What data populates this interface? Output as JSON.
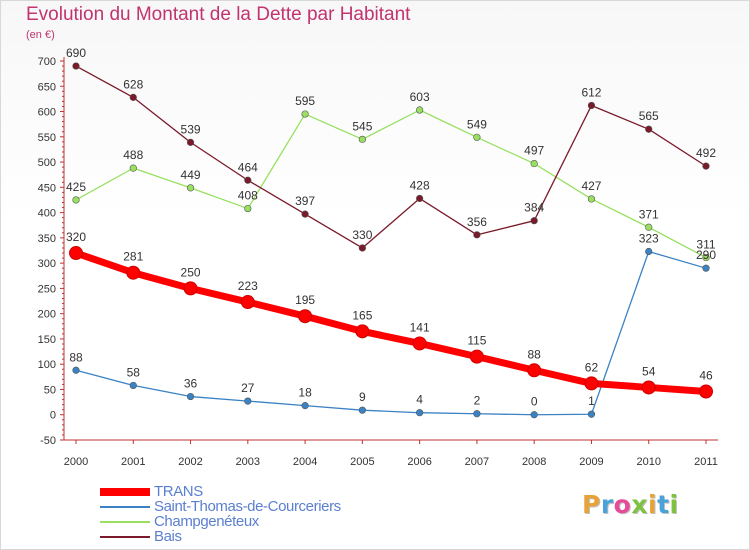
{
  "header": {
    "title": "Evolution du Montant de la Dette par Habitant",
    "subtitle": "(en €)"
  },
  "logo": {
    "text": "Proxiti",
    "colors": [
      "#e8a23a",
      "#4aa3d8",
      "#e84a9a",
      "#7fc241",
      "#e8a23a",
      "#4aa3d8",
      "#7fc241"
    ]
  },
  "chart_data": {
    "type": "line",
    "title": "Evolution du Montant de la Dette par Habitant",
    "ylabel": "(en €)",
    "xlabel": "",
    "categories": [
      "2000",
      "2001",
      "2002",
      "2003",
      "2004",
      "2005",
      "2006",
      "2007",
      "2008",
      "2009",
      "2010",
      "2011"
    ],
    "yticks": [
      -50,
      0,
      50,
      100,
      150,
      200,
      250,
      300,
      350,
      400,
      450,
      500,
      550,
      600,
      650,
      700
    ],
    "ylim": [
      -50,
      700
    ],
    "grid": false,
    "legend_position": "bottom-left",
    "series": [
      {
        "name": "TRANS",
        "color": "#ff0000",
        "emphasis": true,
        "values": [
          320,
          281,
          250,
          223,
          195,
          165,
          141,
          115,
          88,
          62,
          54,
          46
        ]
      },
      {
        "name": "Saint-Thomas-de-Courceriers",
        "color": "#3b82c4",
        "emphasis": false,
        "values": [
          88,
          58,
          36,
          27,
          18,
          9,
          4,
          2,
          0,
          1,
          323,
          290
        ]
      },
      {
        "name": "Champgenéteux",
        "color": "#99e060",
        "emphasis": false,
        "values": [
          425,
          488,
          449,
          408,
          595,
          545,
          603,
          549,
          497,
          427,
          371,
          311
        ]
      },
      {
        "name": "Bais",
        "color": "#7a1a2a",
        "emphasis": false,
        "values": [
          690,
          628,
          539,
          464,
          397,
          330,
          428,
          356,
          384,
          612,
          565,
          492
        ]
      }
    ]
  }
}
